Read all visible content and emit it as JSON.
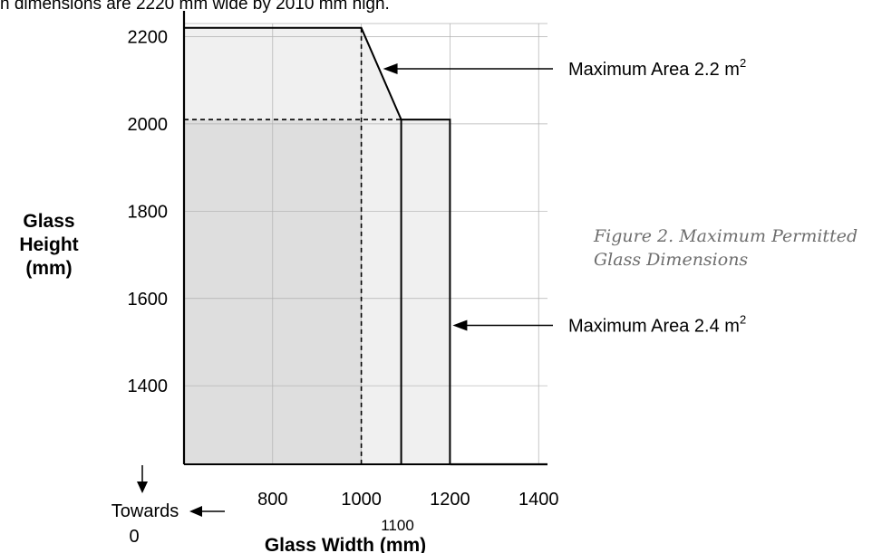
{
  "header": {
    "text": "n dimensions are 2220 mm wide by 2010 mm high."
  },
  "caption": {
    "line1": "Figure 2. Maximum Permitted",
    "line2": "Glass Dimensions"
  },
  "chart_data": {
    "type": "area",
    "xlabel": "Glass Width (mm)",
    "ylabel": [
      "Glass",
      "Height",
      "(mm)"
    ],
    "x_ticks": [
      800,
      1000,
      1200,
      1400
    ],
    "x_extra_tick": 1100,
    "y_ticks": [
      1400,
      1600,
      1800,
      2000,
      2200
    ],
    "xlim": [
      600,
      1420
    ],
    "ylim": [
      1220,
      2230
    ],
    "grid": true,
    "regions": [
      {
        "label_parts": [
          "Maximum Area 2.2 m",
          "2"
        ],
        "fill": "#f0f0f0",
        "outline": [
          [
            600,
            1220
          ],
          [
            600,
            2220
          ],
          [
            1000,
            2220
          ],
          [
            1090,
            2010
          ],
          [
            1090,
            1220
          ]
        ]
      },
      {
        "label_parts": [
          "Maximum Area 2.4 m",
          "2"
        ],
        "fill": "#f0f0f0",
        "outline": [
          [
            1090,
            1220
          ],
          [
            1090,
            2010
          ],
          [
            1200,
            2010
          ],
          [
            1200,
            1220
          ]
        ]
      }
    ],
    "inner_region": {
      "fill": "#dedede",
      "outline": [
        [
          600,
          1220
        ],
        [
          600,
          2010
        ],
        [
          1000,
          2010
        ],
        [
          1000,
          1220
        ]
      ]
    },
    "dashed_lines": [
      [
        [
          600,
          2010
        ],
        [
          1090,
          2010
        ]
      ],
      [
        [
          1000,
          2220
        ],
        [
          1000,
          1220
        ]
      ]
    ],
    "baseline": [
      [
        1200,
        1220
      ],
      [
        1420,
        1220
      ]
    ],
    "towards_zero": {
      "line1": "Towards",
      "line2": "0"
    },
    "colors": {
      "frame": "#000000",
      "grid": "#b0b0b0",
      "caption": "#6e6e6e"
    }
  }
}
